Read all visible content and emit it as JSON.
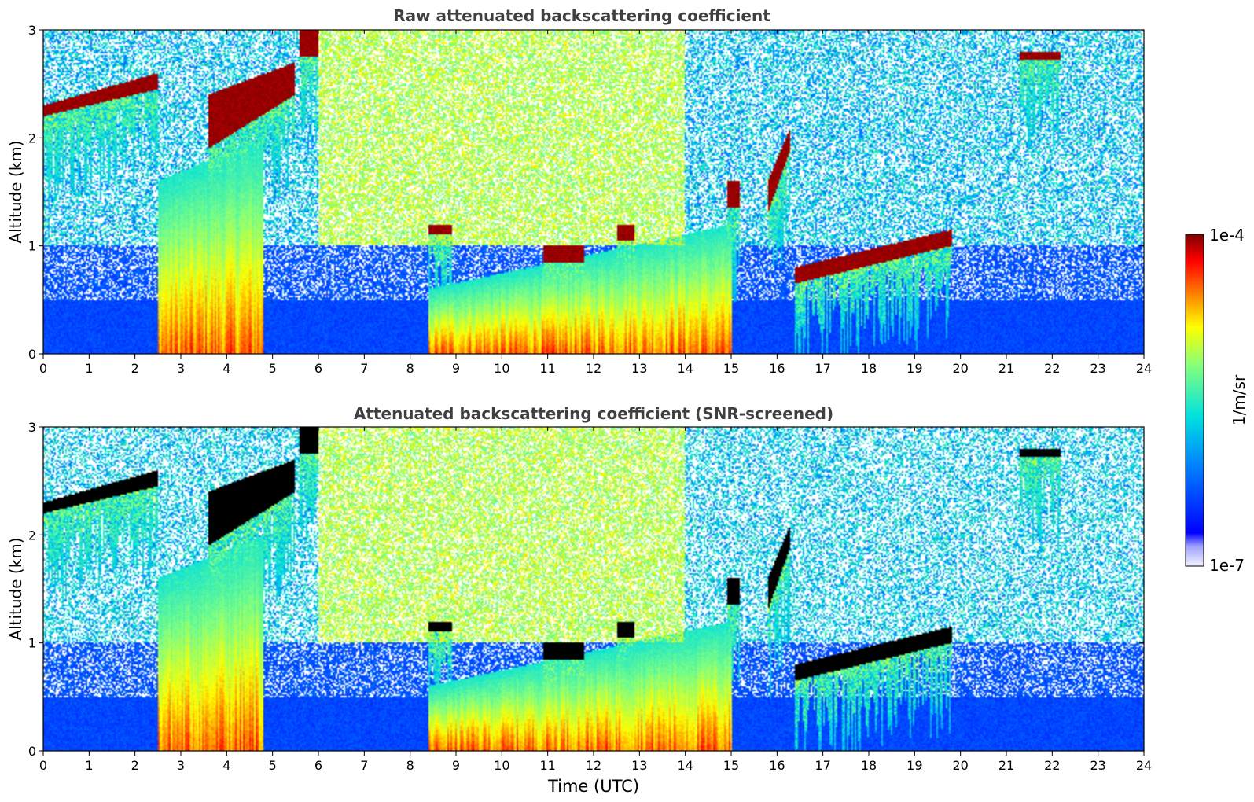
{
  "chart_data": [
    {
      "type": "heatmap",
      "title": "Raw attenuated backscattering coefficient",
      "ylabel": "Altitude (km)",
      "xlabel": "",
      "xlim": [
        0,
        24
      ],
      "ylim": [
        0,
        3
      ],
      "x_ticks": [
        "0",
        "1",
        "2",
        "3",
        "4",
        "5",
        "6",
        "7",
        "8",
        "9",
        "10",
        "11",
        "12",
        "13",
        "14",
        "15",
        "16",
        "17",
        "18",
        "19",
        "20",
        "21",
        "22",
        "23",
        "24"
      ],
      "y_ticks": [
        "0",
        "1",
        "2",
        "3"
      ],
      "screened": false,
      "features": [
        {
          "kind": "cloud",
          "x": [
            0.0,
            2.5
          ],
          "base": [
            2.2,
            2.45
          ],
          "top": [
            2.3,
            2.6
          ]
        },
        {
          "kind": "cloud",
          "x": [
            3.6,
            5.5
          ],
          "base": [
            1.9,
            2.4
          ],
          "top": [
            2.4,
            2.7
          ]
        },
        {
          "kind": "cloud",
          "x": [
            5.6,
            6.0
          ],
          "base": [
            2.75,
            2.75
          ],
          "top": [
            3.0,
            3.0
          ]
        },
        {
          "kind": "cloud",
          "x": [
            8.4,
            8.9
          ],
          "base": [
            1.1,
            1.1
          ],
          "top": [
            1.2,
            1.2
          ]
        },
        {
          "kind": "cloud",
          "x": [
            10.9,
            11.8
          ],
          "base": [
            0.85,
            0.85
          ],
          "top": [
            1.0,
            1.0
          ]
        },
        {
          "kind": "cloud",
          "x": [
            12.5,
            12.9
          ],
          "base": [
            1.05,
            1.05
          ],
          "top": [
            1.2,
            1.2
          ]
        },
        {
          "kind": "cloud",
          "x": [
            14.9,
            15.2
          ],
          "base": [
            1.35,
            1.35
          ],
          "top": [
            1.6,
            1.6
          ]
        },
        {
          "kind": "cloud",
          "x": [
            15.8,
            16.3
          ],
          "base": [
            1.3,
            1.9
          ],
          "top": [
            1.6,
            2.1
          ]
        },
        {
          "kind": "cloud",
          "x": [
            16.4,
            19.8
          ],
          "base": [
            0.65,
            1.0
          ],
          "top": [
            0.8,
            1.15
          ]
        },
        {
          "kind": "cloud",
          "x": [
            21.3,
            22.2
          ],
          "base": [
            2.72,
            2.72
          ],
          "top": [
            2.8,
            2.8
          ]
        },
        {
          "kind": "aerosol",
          "x": [
            2.5,
            4.8
          ],
          "base": [
            0.0,
            0.0
          ],
          "top": [
            1.6,
            2.0
          ]
        },
        {
          "kind": "aerosol",
          "x": [
            8.4,
            15.0
          ],
          "base": [
            0.0,
            0.0
          ],
          "top": [
            0.6,
            1.2
          ]
        }
      ]
    },
    {
      "type": "heatmap",
      "title": "Attenuated backscattering coefficient (SNR-screened)",
      "ylabel": "Altitude (km)",
      "xlabel": "Time (UTC)",
      "xlim": [
        0,
        24
      ],
      "ylim": [
        0,
        3
      ],
      "x_ticks": [
        "0",
        "1",
        "2",
        "3",
        "4",
        "5",
        "6",
        "7",
        "8",
        "9",
        "10",
        "11",
        "12",
        "13",
        "14",
        "15",
        "16",
        "17",
        "18",
        "19",
        "20",
        "21",
        "22",
        "23",
        "24"
      ],
      "y_ticks": [
        "0",
        "1",
        "2",
        "3"
      ],
      "screened": true
    }
  ],
  "colorbar": {
    "label": "1/m/sr",
    "max_label": "1e-4",
    "min_label": "1e-7",
    "vmin": 1e-07,
    "vmax": 0.0001,
    "scale": "log",
    "colormap": "jet",
    "saturated_color": "#000000"
  }
}
